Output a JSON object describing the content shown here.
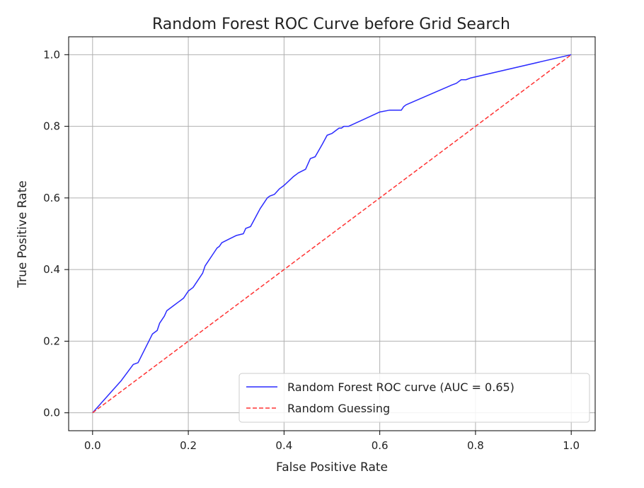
{
  "chart_data": {
    "type": "line",
    "title": "Random Forest ROC Curve before Grid Search",
    "xlabel": "False Positive Rate",
    "ylabel": "True Positive Rate",
    "xlim": [
      -0.05,
      1.05
    ],
    "ylim": [
      -0.05,
      1.05
    ],
    "xticks": [
      0.0,
      0.2,
      0.4,
      0.6,
      0.8,
      1.0
    ],
    "xtick_labels": [
      "0.0",
      "0.2",
      "0.4",
      "0.6",
      "0.8",
      "1.0"
    ],
    "yticks": [
      0.0,
      0.2,
      0.4,
      0.6,
      0.8,
      1.0
    ],
    "ytick_labels": [
      "0.0",
      "0.2",
      "0.4",
      "0.6",
      "0.8",
      "1.0"
    ],
    "grid": true,
    "legend_position": "lower-right",
    "series": [
      {
        "name": "Random Forest ROC curve (AUC = 0.65)",
        "color": "#2b2bff",
        "style": "solid",
        "x": [
          0.0,
          0.03,
          0.06,
          0.085,
          0.095,
          0.11,
          0.125,
          0.135,
          0.14,
          0.15,
          0.155,
          0.17,
          0.18,
          0.19,
          0.2,
          0.21,
          0.22,
          0.23,
          0.235,
          0.245,
          0.25,
          0.26,
          0.265,
          0.27,
          0.285,
          0.3,
          0.315,
          0.32,
          0.33,
          0.34,
          0.35,
          0.36,
          0.365,
          0.37,
          0.38,
          0.39,
          0.4,
          0.42,
          0.43,
          0.445,
          0.455,
          0.465,
          0.48,
          0.49,
          0.5,
          0.51,
          0.515,
          0.52,
          0.525,
          0.535,
          0.6,
          0.62,
          0.645,
          0.65,
          0.655,
          0.75,
          0.76,
          0.77,
          0.78,
          0.79,
          1.0
        ],
        "y": [
          0.0,
          0.045,
          0.09,
          0.135,
          0.14,
          0.18,
          0.22,
          0.23,
          0.25,
          0.27,
          0.285,
          0.3,
          0.31,
          0.32,
          0.34,
          0.35,
          0.37,
          0.39,
          0.41,
          0.43,
          0.44,
          0.46,
          0.465,
          0.475,
          0.485,
          0.495,
          0.5,
          0.515,
          0.52,
          0.545,
          0.57,
          0.59,
          0.6,
          0.605,
          0.61,
          0.625,
          0.635,
          0.66,
          0.67,
          0.68,
          0.71,
          0.715,
          0.75,
          0.775,
          0.78,
          0.79,
          0.795,
          0.795,
          0.8,
          0.8,
          0.84,
          0.845,
          0.845,
          0.855,
          0.86,
          0.915,
          0.92,
          0.93,
          0.93,
          0.935,
          1.0
        ]
      },
      {
        "name": "Random Guessing",
        "color": "#ff3333",
        "style": "dashed",
        "x": [
          0.0,
          1.0
        ],
        "y": [
          0.0,
          1.0
        ]
      }
    ]
  }
}
